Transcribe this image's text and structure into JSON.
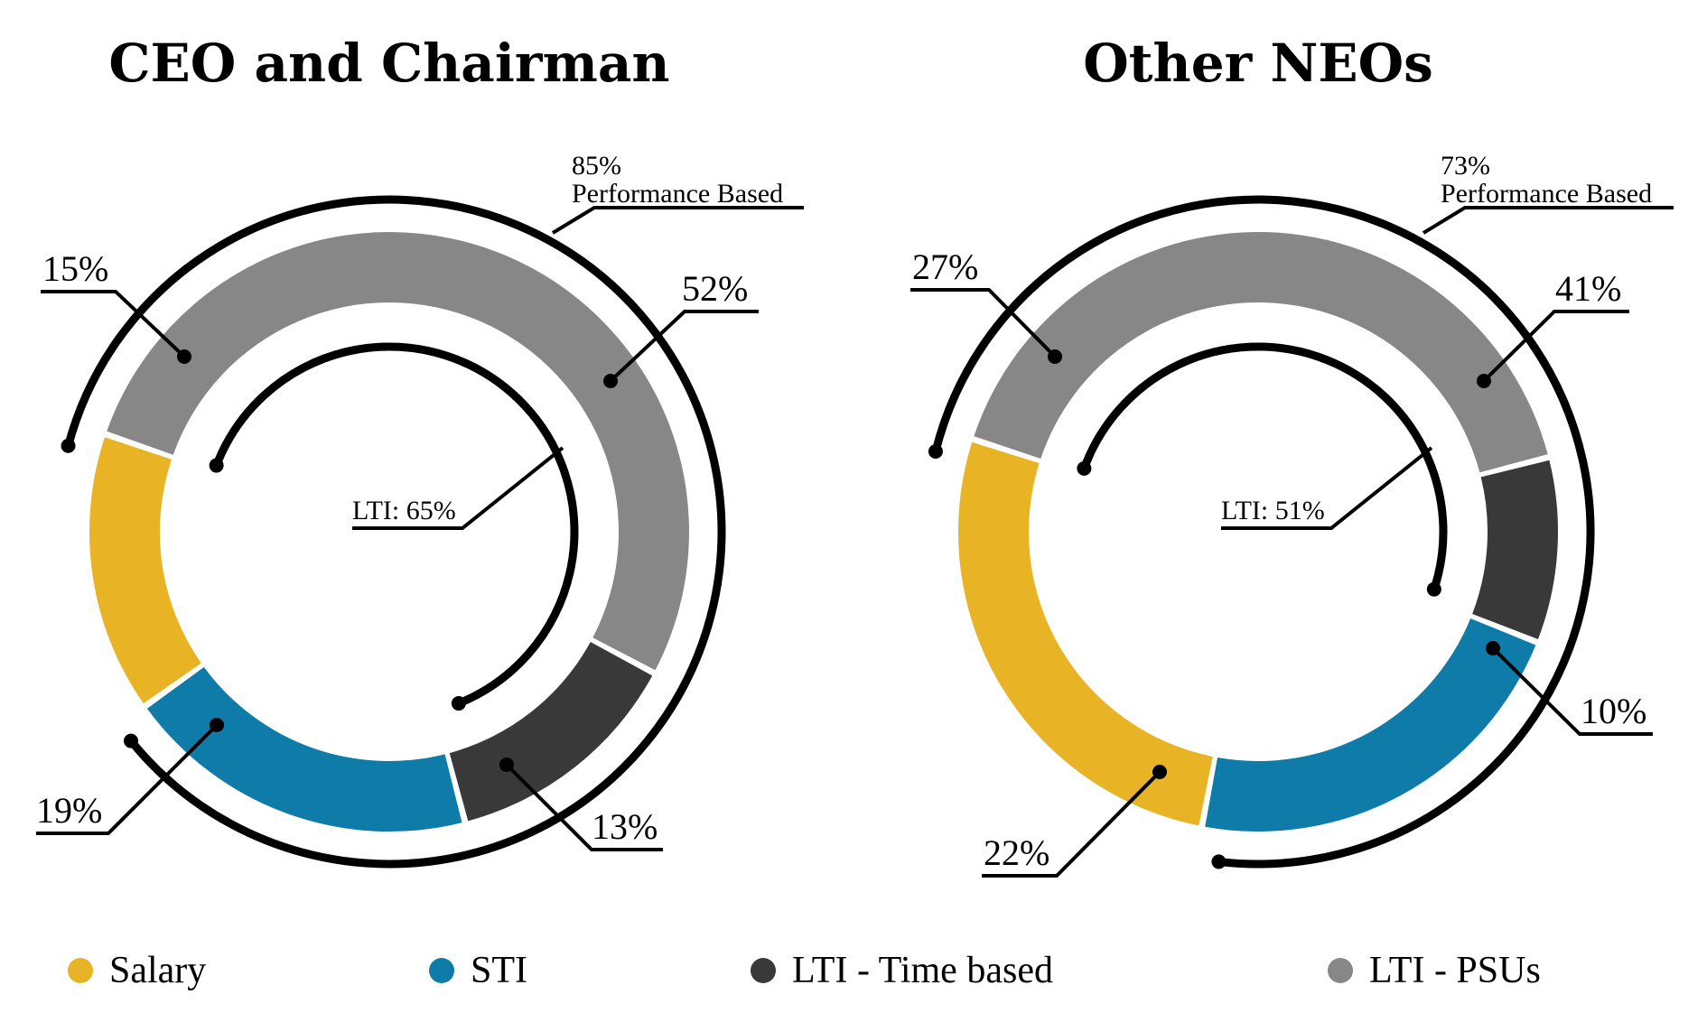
{
  "colors": {
    "salary": "#E8B425",
    "sti": "#0E7BA8",
    "lti_time": "#393939",
    "lti_psu": "#878787"
  },
  "legend": [
    {
      "label": "Salary",
      "color_key": "salary"
    },
    {
      "label": "STI",
      "color_key": "sti"
    },
    {
      "label": "LTI - Time based",
      "color_key": "lti_time"
    },
    {
      "label": "LTI - PSUs",
      "color_key": "lti_psu"
    }
  ],
  "chart_data": [
    {
      "type": "pie",
      "title": "CEO and Chairman",
      "categories": [
        "Salary",
        "STI",
        "LTI - Time based",
        "LTI - PSUs"
      ],
      "values": [
        15,
        19,
        13,
        52
      ],
      "labels": [
        "15%",
        "19%",
        "13%",
        "52%"
      ],
      "performance_based": {
        "value": 85,
        "pct_label": "85%",
        "text": "Performance Based"
      },
      "lti_total": {
        "value": 65,
        "label": "LTI: 65%"
      }
    },
    {
      "type": "pie",
      "title": "Other NEOs",
      "categories": [
        "Salary",
        "STI",
        "LTI - Time based",
        "LTI - PSUs"
      ],
      "values": [
        27,
        22,
        10,
        41
      ],
      "labels": [
        "27%",
        "22%",
        "10%",
        "41%"
      ],
      "performance_based": {
        "value": 73,
        "pct_label": "73%",
        "text": "Performance Based"
      },
      "lti_total": {
        "value": 51,
        "label": "LTI: 51%"
      }
    }
  ]
}
